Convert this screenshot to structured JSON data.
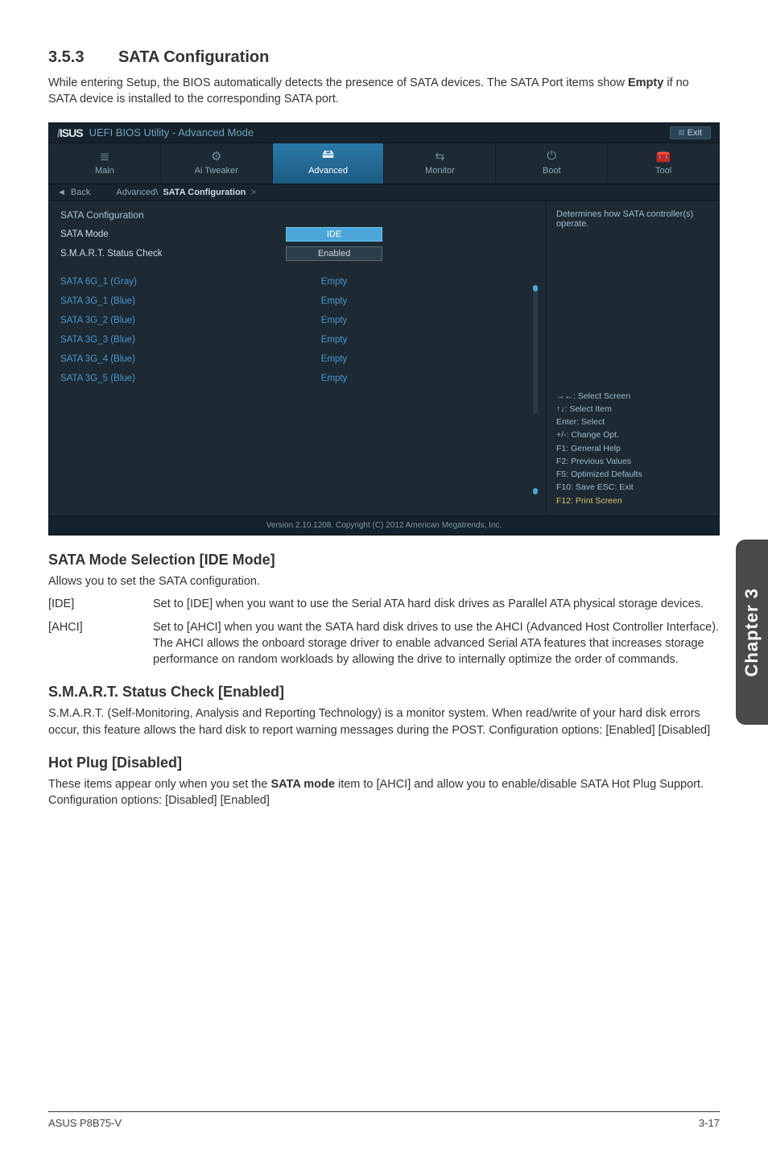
{
  "section": {
    "number": "3.5.3",
    "title": "SATA Configuration"
  },
  "intro": {
    "pre": "While entering Setup, the BIOS automatically detects the presence of SATA devices. The SATA Port items show ",
    "bold": "Empty",
    "post": " if no SATA device is installed to the corresponding SATA port."
  },
  "bios": {
    "header_title": "UEFI BIOS Utility - Advanced Mode",
    "exit": "Exit",
    "tabs": [
      {
        "label": "Main",
        "icon": "≣"
      },
      {
        "label": "Ai Tweaker",
        "icon": "⚙"
      },
      {
        "label": "Advanced",
        "icon": "🖴",
        "active": true
      },
      {
        "label": "Monitor",
        "icon": "⇆"
      },
      {
        "label": "Boot",
        "icon": "⏻"
      },
      {
        "label": "Tool",
        "icon": "🧰"
      }
    ],
    "breadcrumb": {
      "back": "Back",
      "path_a": "Advanced\\",
      "path_b": "SATA Configuration",
      "chev": ">"
    },
    "section_title": "SATA Configuration",
    "rows": [
      {
        "label": "SATA Mode",
        "field": "IDE",
        "selected": true
      },
      {
        "label": "S.M.A.R.T. Status Check",
        "field": "Enabled",
        "selected": false
      }
    ],
    "ports": [
      {
        "label": "SATA 6G_1 (Gray)",
        "val": "Empty"
      },
      {
        "label": "SATA 3G_1 (Blue)",
        "val": "Empty"
      },
      {
        "label": "SATA 3G_2 (Blue)",
        "val": "Empty"
      },
      {
        "label": "SATA 3G_3 (Blue)",
        "val": "Empty"
      },
      {
        "label": "SATA 3G_4 (Blue)",
        "val": "Empty"
      },
      {
        "label": "SATA 3G_5 (Blue)",
        "val": "Empty"
      }
    ],
    "help_desc": "Determines how SATA controller(s) operate.",
    "help_keys": [
      "→←: Select Screen",
      "↑↓: Select Item",
      "Enter: Select",
      "+/-: Change Opt.",
      "F1: General Help",
      "F2: Previous Values",
      "F5: Optimized Defaults",
      "F10: Save   ESC: Exit"
    ],
    "help_print": "F12: Print Screen",
    "footer": "Version 2.10.1208. Copyright (C) 2012 American Megatrends, Inc."
  },
  "sub1": {
    "title": "SATA Mode Selection [IDE Mode]",
    "lead": "Allows you to set the SATA configuration.",
    "opts": [
      {
        "key": "[IDE]",
        "desc": "Set to [IDE] when you want to use the Serial ATA hard disk drives as Parallel ATA physical storage devices."
      },
      {
        "key": "[AHCI]",
        "desc": "Set to [AHCI] when you want the SATA hard disk drives to use the AHCI (Advanced Host Controller Interface). The AHCI allows the onboard storage driver to enable advanced Serial ATA features that increases storage performance on random workloads by allowing the drive to internally optimize the order of commands."
      }
    ]
  },
  "sub2": {
    "title": "S.M.A.R.T. Status Check [Enabled]",
    "body": "S.M.A.R.T. (Self-Monitoring, Analysis and Reporting Technology) is a monitor system. When read/write of your hard disk errors occur, this feature allows the hard disk to report warning messages during the POST. Configuration options: [Enabled] [Disabled]"
  },
  "sub3": {
    "title": "Hot Plug [Disabled]",
    "pre": "These items appear only when you set the ",
    "bold": "SATA mode",
    "post": " item to [AHCI] and allow you to enable/disable SATA Hot Plug Support. Configuration options: [Disabled] [Enabled]"
  },
  "sidebar": "Chapter 3",
  "footer": {
    "left": "ASUS P8B75-V",
    "right": "3-17"
  }
}
